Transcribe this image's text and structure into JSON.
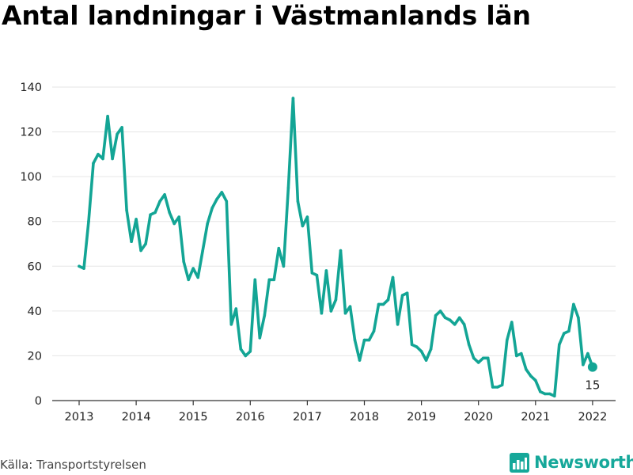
{
  "title": "Antal landningar i Västmanlands län",
  "source": "Källa: Transportstyrelsen",
  "brand": {
    "name": "Newsworthy",
    "icon": "newsworthy-logo-icon"
  },
  "colors": {
    "line": "#13a595",
    "axis": "#333333",
    "grid": "#e6e6e6",
    "brand": "#16a89a"
  },
  "chart_data": {
    "type": "line",
    "title": "Antal landningar i Västmanlands län",
    "xlabel": "",
    "ylabel": "",
    "ylim": [
      0,
      140
    ],
    "yticks": [
      0,
      20,
      40,
      60,
      80,
      100,
      120,
      140
    ],
    "xticks": [
      "2013",
      "2014",
      "2015",
      "2016",
      "2017",
      "2018",
      "2019",
      "2020",
      "2021",
      "2022"
    ],
    "grid": "horizontal",
    "x_start": "2013-01",
    "x_end": "2022-01",
    "end_label": "15",
    "series": [
      {
        "values": [
          60,
          59,
          80,
          106,
          110,
          108,
          127,
          108,
          119,
          122,
          85,
          71,
          81,
          67,
          70,
          83,
          84,
          89,
          92,
          84,
          79,
          82,
          62,
          54,
          59,
          55,
          67,
          79,
          86,
          90,
          93,
          89,
          34,
          41,
          23,
          20,
          22,
          54,
          28,
          38,
          54,
          54,
          68,
          60,
          95,
          135,
          89,
          78,
          82,
          57,
          56,
          39,
          58,
          40,
          45,
          67,
          39,
          42,
          27,
          18,
          27,
          27,
          31,
          43,
          43,
          45,
          55,
          34,
          47,
          48,
          25,
          24,
          22,
          18,
          23,
          38,
          40,
          37,
          36,
          34,
          37,
          34,
          25,
          19,
          17,
          19,
          19,
          6,
          6,
          7,
          27,
          35,
          20,
          21,
          14,
          11,
          9,
          4,
          3,
          3,
          2,
          25,
          30,
          31,
          43,
          37,
          16,
          21,
          15
        ]
      }
    ]
  }
}
